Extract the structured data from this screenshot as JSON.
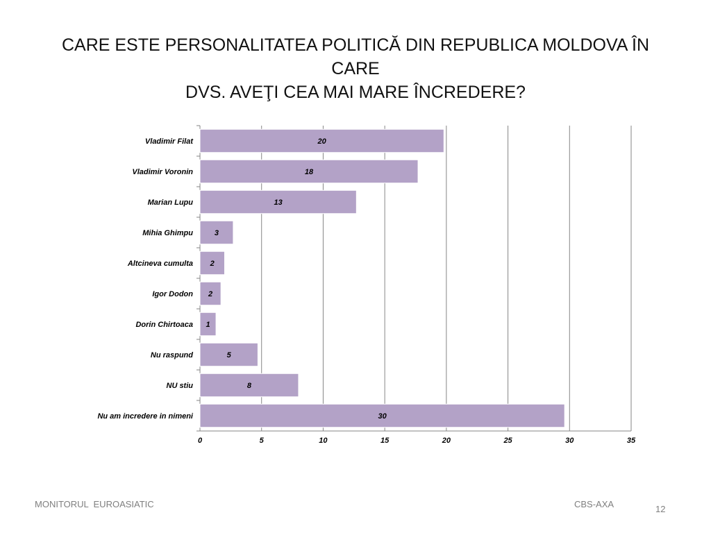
{
  "slide": {
    "title_line1": "CARE ESTE PERSONALITATEA POLITICĂ DIN REPUBLICA MOLDOVA ÎN CARE",
    "title_line2": "DVS. AVEŢI CEA MAI MARE ÎNCREDERE?",
    "footer_left": "MONITORUL  EUROASIATIC",
    "footer_right": "CBS-AXA",
    "page_number": "12"
  },
  "chart_data": {
    "type": "bar",
    "orientation": "horizontal",
    "categories": [
      "Vladimir Filat",
      "Vladimir Voronin",
      "Marian Lupu",
      "Mihia Ghimpu",
      "Altcineva cumulta",
      "Igor Dodon",
      "Dorin Chirtoaca",
      "Nu raspund",
      "NU stiu",
      "Nu am incredere in nimeni"
    ],
    "values": [
      19.8,
      17.7,
      12.7,
      2.7,
      2.0,
      1.7,
      1.3,
      4.7,
      8.0,
      29.6
    ],
    "data_labels": [
      "20",
      "18",
      "13",
      "3",
      "2",
      "2",
      "1",
      "5",
      "8",
      "30"
    ],
    "xlim": [
      0,
      35
    ],
    "xticks": [
      "0",
      "5",
      "10",
      "15",
      "20",
      "25",
      "30",
      "35"
    ],
    "grid": true,
    "legend": "none",
    "bar_color": "#b3a2c7",
    "bar_edge_color": "#ffffff"
  }
}
